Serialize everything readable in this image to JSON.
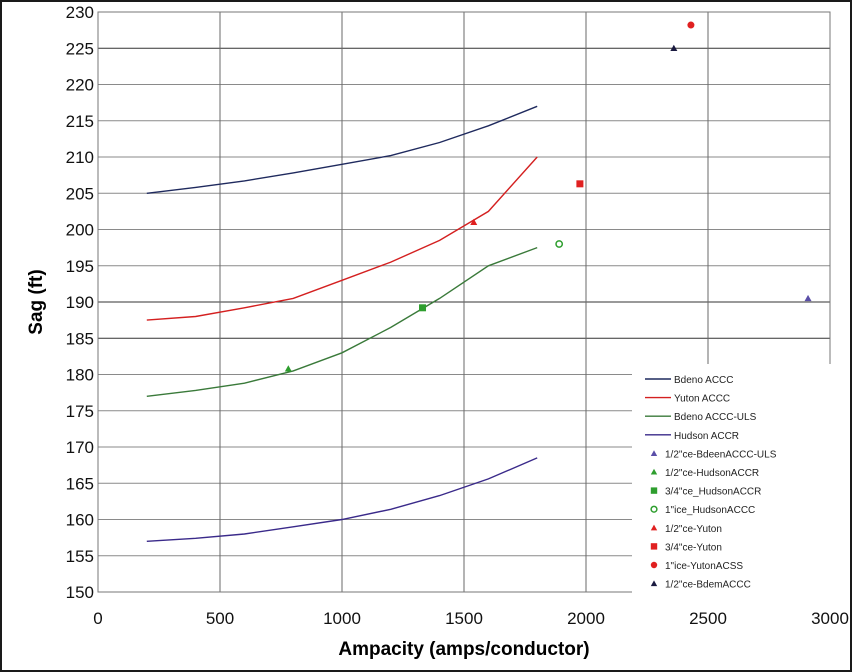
{
  "chart_data": {
    "type": "line",
    "title": "",
    "xlabel": "Ampacity (amps/conductor)",
    "ylabel": "Sag (ft)",
    "xlim": [
      0,
      3000
    ],
    "ylim": [
      150,
      230
    ],
    "xticks": [
      0,
      500,
      1000,
      1500,
      2000,
      2500,
      3000
    ],
    "yticks": [
      150,
      155,
      160,
      165,
      170,
      175,
      180,
      185,
      190,
      195,
      200,
      205,
      210,
      215,
      220,
      225,
      230
    ],
    "grid": true,
    "legend_position": "bottom-right",
    "series": [
      {
        "name": "Bdeno ACCC",
        "kind": "line",
        "color": "#1f2a5e",
        "x": [
          200,
          400,
          600,
          800,
          1000,
          1200,
          1400,
          1600,
          1800
        ],
        "y": [
          205.0,
          205.8,
          206.7,
          207.8,
          209.0,
          210.2,
          212.0,
          214.3,
          217.0
        ]
      },
      {
        "name": "Yuton ACCC",
        "kind": "line",
        "color": "#d42020",
        "x": [
          200,
          400,
          600,
          800,
          1000,
          1200,
          1400,
          1600,
          1800
        ],
        "y": [
          187.5,
          188.0,
          189.2,
          190.5,
          193.0,
          195.5,
          198.5,
          202.5,
          210.0
        ]
      },
      {
        "name": "Bdeno ACCC-ULS",
        "kind": "line",
        "color": "#3a7a3a",
        "x": [
          200,
          400,
          600,
          800,
          1000,
          1200,
          1400,
          1600,
          1800
        ],
        "y": [
          177.0,
          177.8,
          178.8,
          180.5,
          183.0,
          186.5,
          190.5,
          195.0,
          197.5
        ]
      },
      {
        "name": "Hudson ACCR",
        "kind": "line",
        "color": "#3a2a8a",
        "x": [
          200,
          400,
          600,
          800,
          1000,
          1200,
          1400,
          1600,
          1800
        ],
        "y": [
          157.0,
          157.4,
          158.0,
          159.0,
          160.0,
          161.4,
          163.3,
          165.6,
          168.5
        ]
      },
      {
        "name": "1/2\"ce-BdeenACCC-ULS",
        "kind": "marker",
        "marker": "triangle",
        "color": "#5a4ea8",
        "x": [
          2910
        ],
        "y": [
          190.5
        ]
      },
      {
        "name": "1/2\"ce-HudsonACCR",
        "kind": "marker",
        "marker": "triangle",
        "color": "#2e9e2e",
        "x": [
          780
        ],
        "y": [
          180.8
        ]
      },
      {
        "name": "3/4\"ce_HudsonACCR",
        "kind": "marker",
        "marker": "square",
        "color": "#2e9e2e",
        "x": [
          1330
        ],
        "y": [
          189.2
        ]
      },
      {
        "name": "1\"ice_HudsonACCC",
        "kind": "marker",
        "marker": "diamond",
        "color": "#2e9e2e",
        "x": [
          1890
        ],
        "y": [
          198.0
        ]
      },
      {
        "name": "1/2\"ce-Yuton",
        "kind": "marker",
        "marker": "triangle",
        "color": "#e02020",
        "x": [
          1540
        ],
        "y": [
          201.0
        ]
      },
      {
        "name": "3/4\"ce-Yuton",
        "kind": "marker",
        "marker": "square",
        "color": "#e02020",
        "x": [
          1975
        ],
        "y": [
          206.3
        ]
      },
      {
        "name": "1\"ice-YutonACSS",
        "kind": "marker",
        "marker": "circle",
        "color": "#e02020",
        "x": [
          2430
        ],
        "y": [
          228.2
        ]
      },
      {
        "name": "1/2\"ce-BdemACCC",
        "kind": "marker",
        "marker": "triangle",
        "color": "#1a1a40",
        "x": [
          2360
        ],
        "y": [
          225.0
        ]
      }
    ]
  }
}
